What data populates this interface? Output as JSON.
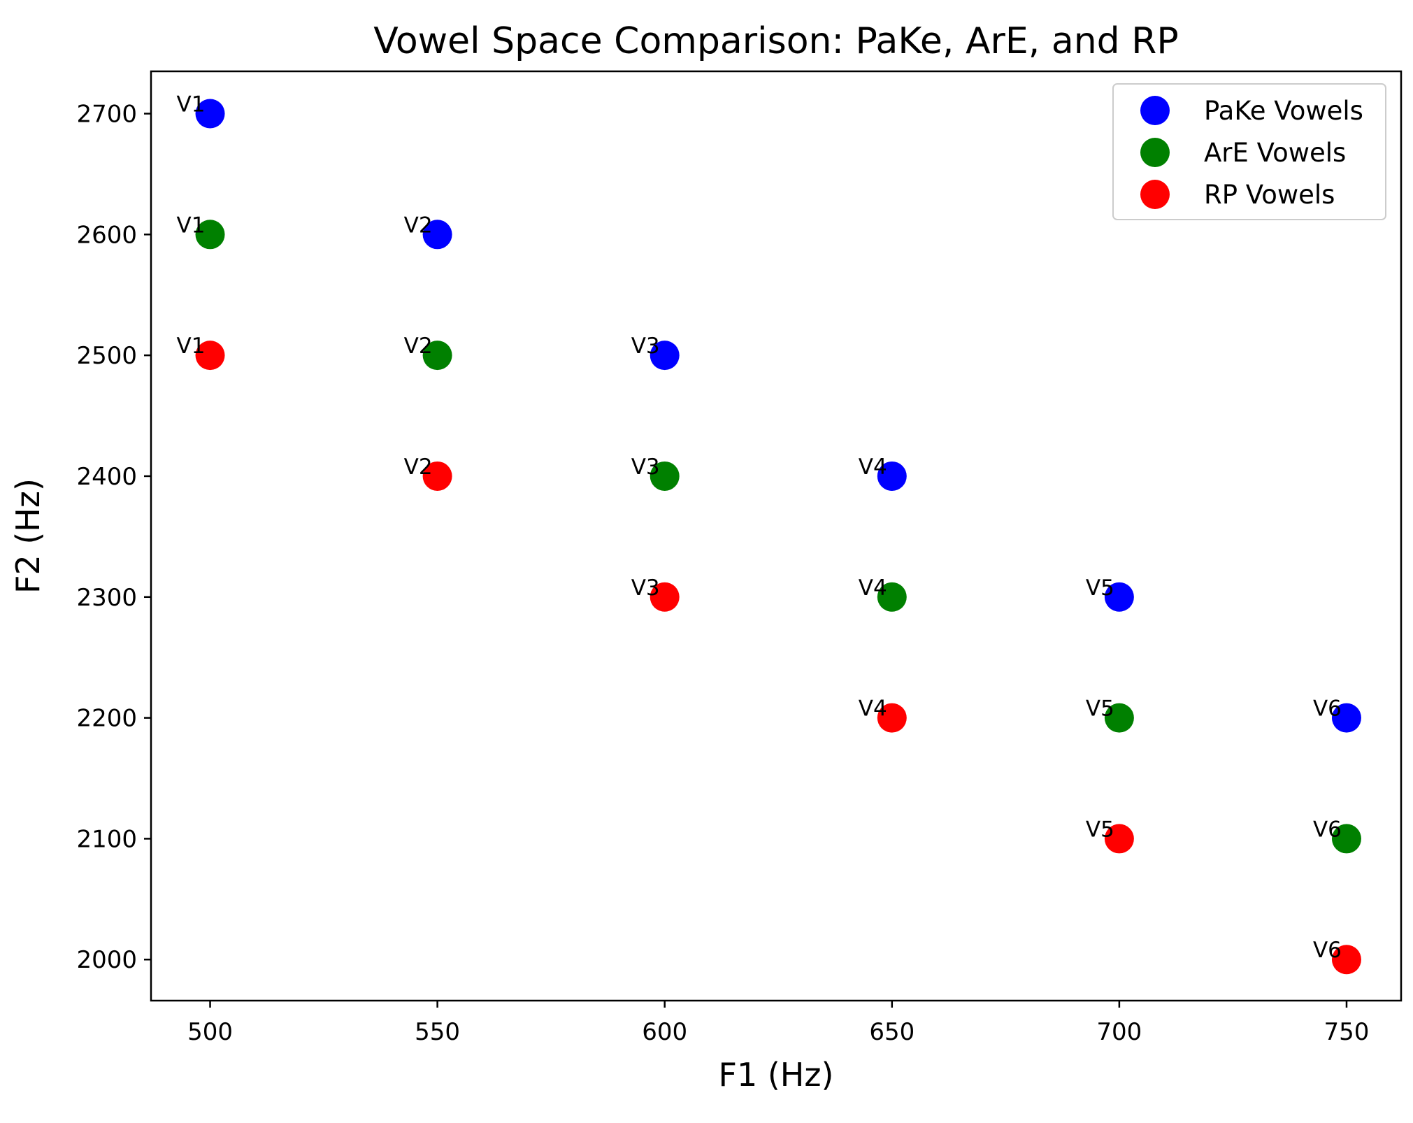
{
  "chart_data": {
    "type": "scatter",
    "title": "Vowel Space Comparison: PaKe, ArE, and RP",
    "xlabel": "F1 (Hz)",
    "ylabel": "F2 (Hz)",
    "xlim": [
      487,
      762
    ],
    "ylim": [
      1966,
      2735
    ],
    "xticks": [
      500,
      550,
      600,
      650,
      700,
      750
    ],
    "yticks": [
      2000,
      2100,
      2200,
      2300,
      2400,
      2500,
      2600,
      2700
    ],
    "grid": false,
    "legend_position": "top-right",
    "series": [
      {
        "name": "PaKe Vowels",
        "color": "#0000ff",
        "x": [
          500,
          550,
          600,
          650,
          700,
          750
        ],
        "y": [
          2700,
          2600,
          2500,
          2400,
          2300,
          2200
        ],
        "labels": [
          "V1",
          "V2",
          "V3",
          "V4",
          "V5",
          "V6"
        ]
      },
      {
        "name": "ArE Vowels",
        "color": "#008000",
        "x": [
          500,
          550,
          600,
          650,
          700,
          750
        ],
        "y": [
          2600,
          2500,
          2400,
          2300,
          2200,
          2100
        ],
        "labels": [
          "V1",
          "V2",
          "V3",
          "V4",
          "V5",
          "V6"
        ]
      },
      {
        "name": "RP Vowels",
        "color": "#ff0000",
        "x": [
          500,
          550,
          600,
          650,
          700,
          750
        ],
        "y": [
          2500,
          2400,
          2300,
          2200,
          2100,
          2000
        ],
        "labels": [
          "V1",
          "V2",
          "V3",
          "V4",
          "V5",
          "V6"
        ]
      }
    ]
  }
}
